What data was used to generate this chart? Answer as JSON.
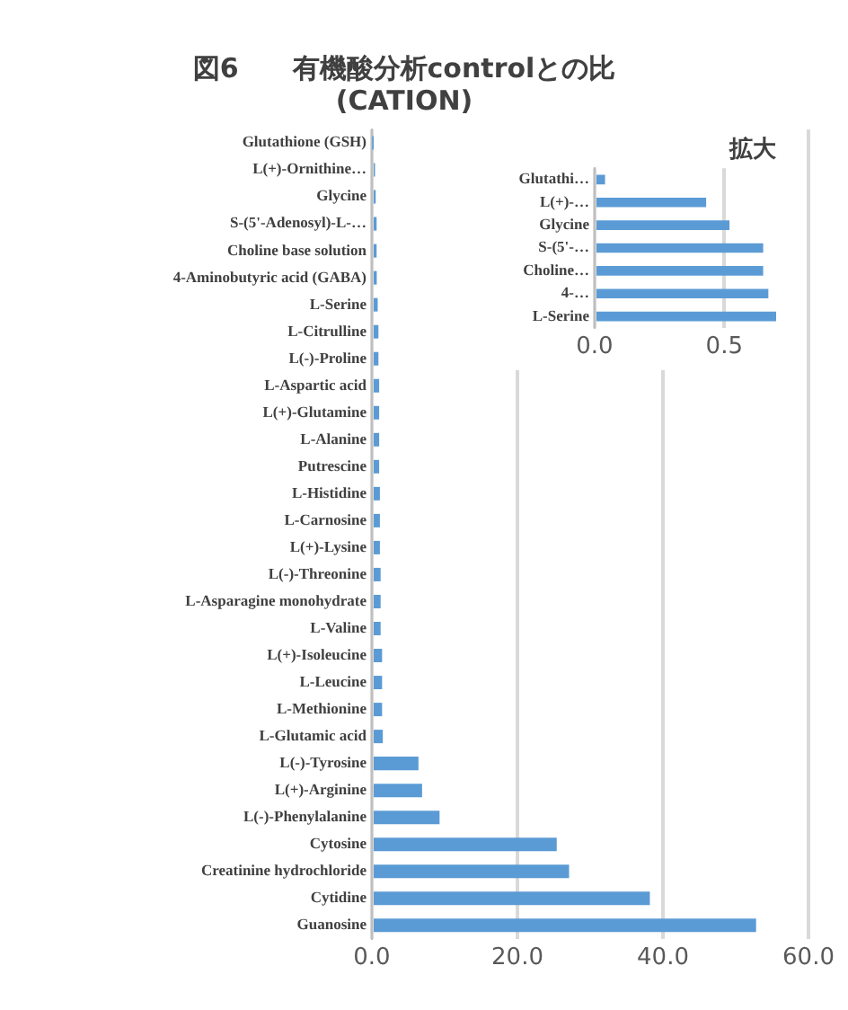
{
  "chart_data": [
    {
      "type": "bar",
      "orientation": "horizontal",
      "title": "図6　　有機酸分析controlとの比\n(CATION)",
      "categories": [
        "Glutathione (GSH)",
        "L(+)-Ornithine…",
        "Glycine",
        "S-(5'-Adenosyl)-L-…",
        "Choline base solution",
        "4-Aminobutyric acid (GABA)",
        "L-Serine",
        "L-Citrulline",
        "L(-)-Proline",
        "L-Aspartic acid",
        "L(+)-Glutamine",
        "L-Alanine",
        "Putrescine",
        "L-Histidine",
        "L-Carnosine",
        "L(+)-Lysine",
        "L(-)-Threonine",
        "L-Asparagine monohydrate",
        "L-Valine",
        "L(+)-Isoleucine",
        "L-Leucine",
        "L-Methionine",
        "L-Glutamic acid",
        "L(-)-Tyrosine",
        "L(+)-Arginine",
        "L(-)-Phenylalanine",
        "Cytosine",
        "Creatinine hydrochloride",
        "Cytidine",
        "Guanosine"
      ],
      "values": [
        0.04,
        0.43,
        0.52,
        0.65,
        0.65,
        0.67,
        0.8,
        0.9,
        0.9,
        1.0,
        1.0,
        1.0,
        1.0,
        1.1,
        1.1,
        1.1,
        1.2,
        1.2,
        1.2,
        1.4,
        1.4,
        1.4,
        1.5,
        6.4,
        6.9,
        9.3,
        25.4,
        27.1,
        38.2,
        52.8
      ],
      "color": "#5b9bd5",
      "xlim": [
        0,
        60
      ],
      "xticks": [
        {
          "value": 0,
          "label": "0.0"
        },
        {
          "value": 20,
          "label": "20.0"
        },
        {
          "value": 40,
          "label": "40.0"
        },
        {
          "value": 60,
          "label": "60.0"
        }
      ],
      "grid": "x"
    },
    {
      "type": "bar",
      "orientation": "horizontal",
      "title": "拡大",
      "categories": [
        "Glutathi…",
        "L(+)-…",
        "Glycine",
        "S-(5'-…",
        "Choline…",
        "4-…",
        "L-Serine"
      ],
      "values": [
        0.04,
        0.43,
        0.52,
        0.65,
        0.65,
        0.67,
        0.7
      ],
      "color": "#5b9bd5",
      "xlim": [
        0,
        0.7
      ],
      "xticks": [
        {
          "value": 0,
          "label": "0.0"
        },
        {
          "value": 0.5,
          "label": "0.5"
        }
      ],
      "grid": "x"
    }
  ]
}
